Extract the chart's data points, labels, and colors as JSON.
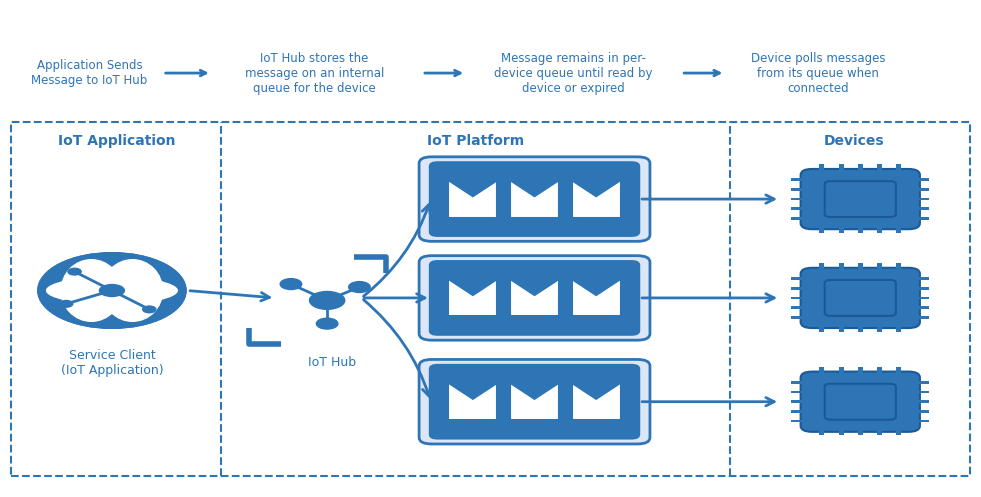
{
  "bg_color": "#ffffff",
  "blue": "#2E75B6",
  "figsize": [
    9.81,
    4.97
  ],
  "dpi": 100,
  "top_steps": [
    "Application Sends\nMessage to IoT Hub",
    "IoT Hub stores the\nmessage on an internal\nqueue for the device",
    "Message remains in per-\ndevice queue until read by\ndevice or expired",
    "Device polls messages\nfrom its queue when\nconnected"
  ],
  "section_labels": [
    "IoT Application",
    "IoT Platform",
    "Devices"
  ],
  "bottom_label": "Service Client\n(IoT Application)",
  "hub_label": "IoT Hub"
}
